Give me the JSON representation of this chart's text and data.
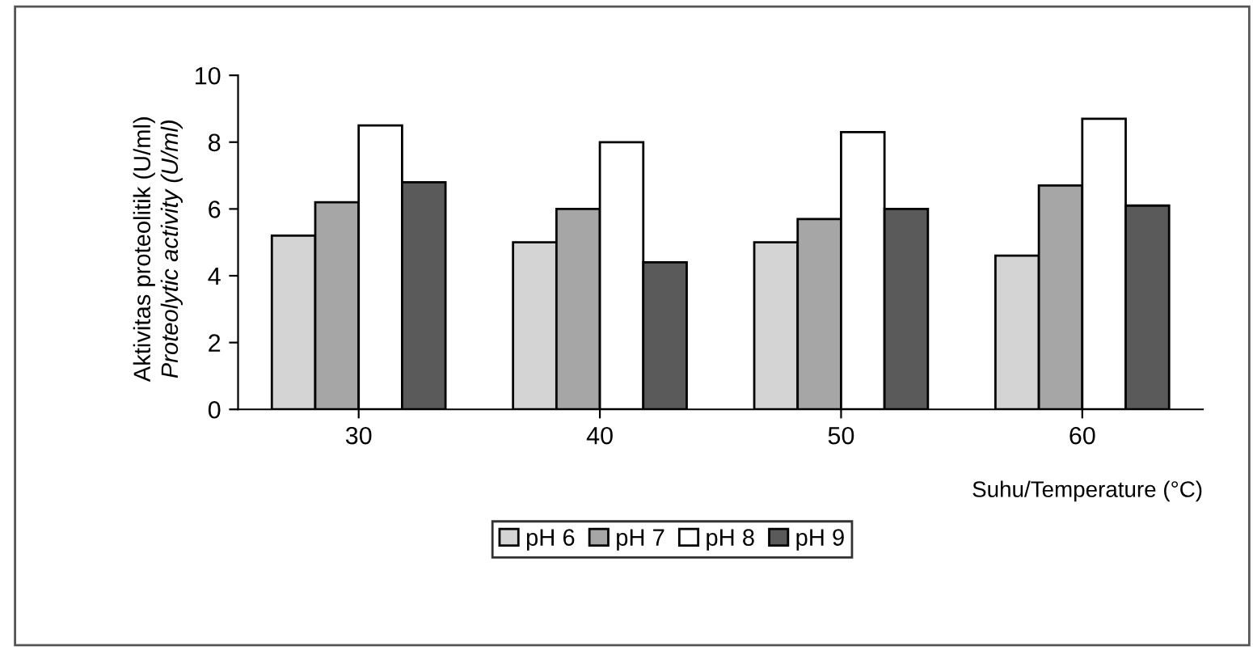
{
  "chart_data": {
    "type": "bar",
    "xlabel": "Suhu/Temperature (°C)",
    "ylabel": "Aktivitas proteolitik (U/ml)\nProteolytic activity (U/ml)",
    "categories": [
      "30",
      "40",
      "50",
      "60"
    ],
    "series": [
      {
        "name": "pH 6",
        "color": "#d4d4d4",
        "values": [
          5.2,
          5.0,
          5.0,
          4.6
        ]
      },
      {
        "name": "pH 7",
        "color": "#a6a6a6",
        "values": [
          6.2,
          6.0,
          5.7,
          6.7
        ]
      },
      {
        "name": "pH 8",
        "color": "#ffffff",
        "values": [
          8.5,
          8.0,
          8.3,
          8.7
        ]
      },
      {
        "name": "pH 9",
        "color": "#5a5a5a",
        "values": [
          6.8,
          4.4,
          6.0,
          6.1
        ]
      }
    ],
    "ylim": [
      0,
      10
    ],
    "yticks": [
      0,
      2,
      4,
      6,
      8,
      10
    ],
    "grid": false,
    "legend": "bottom"
  }
}
